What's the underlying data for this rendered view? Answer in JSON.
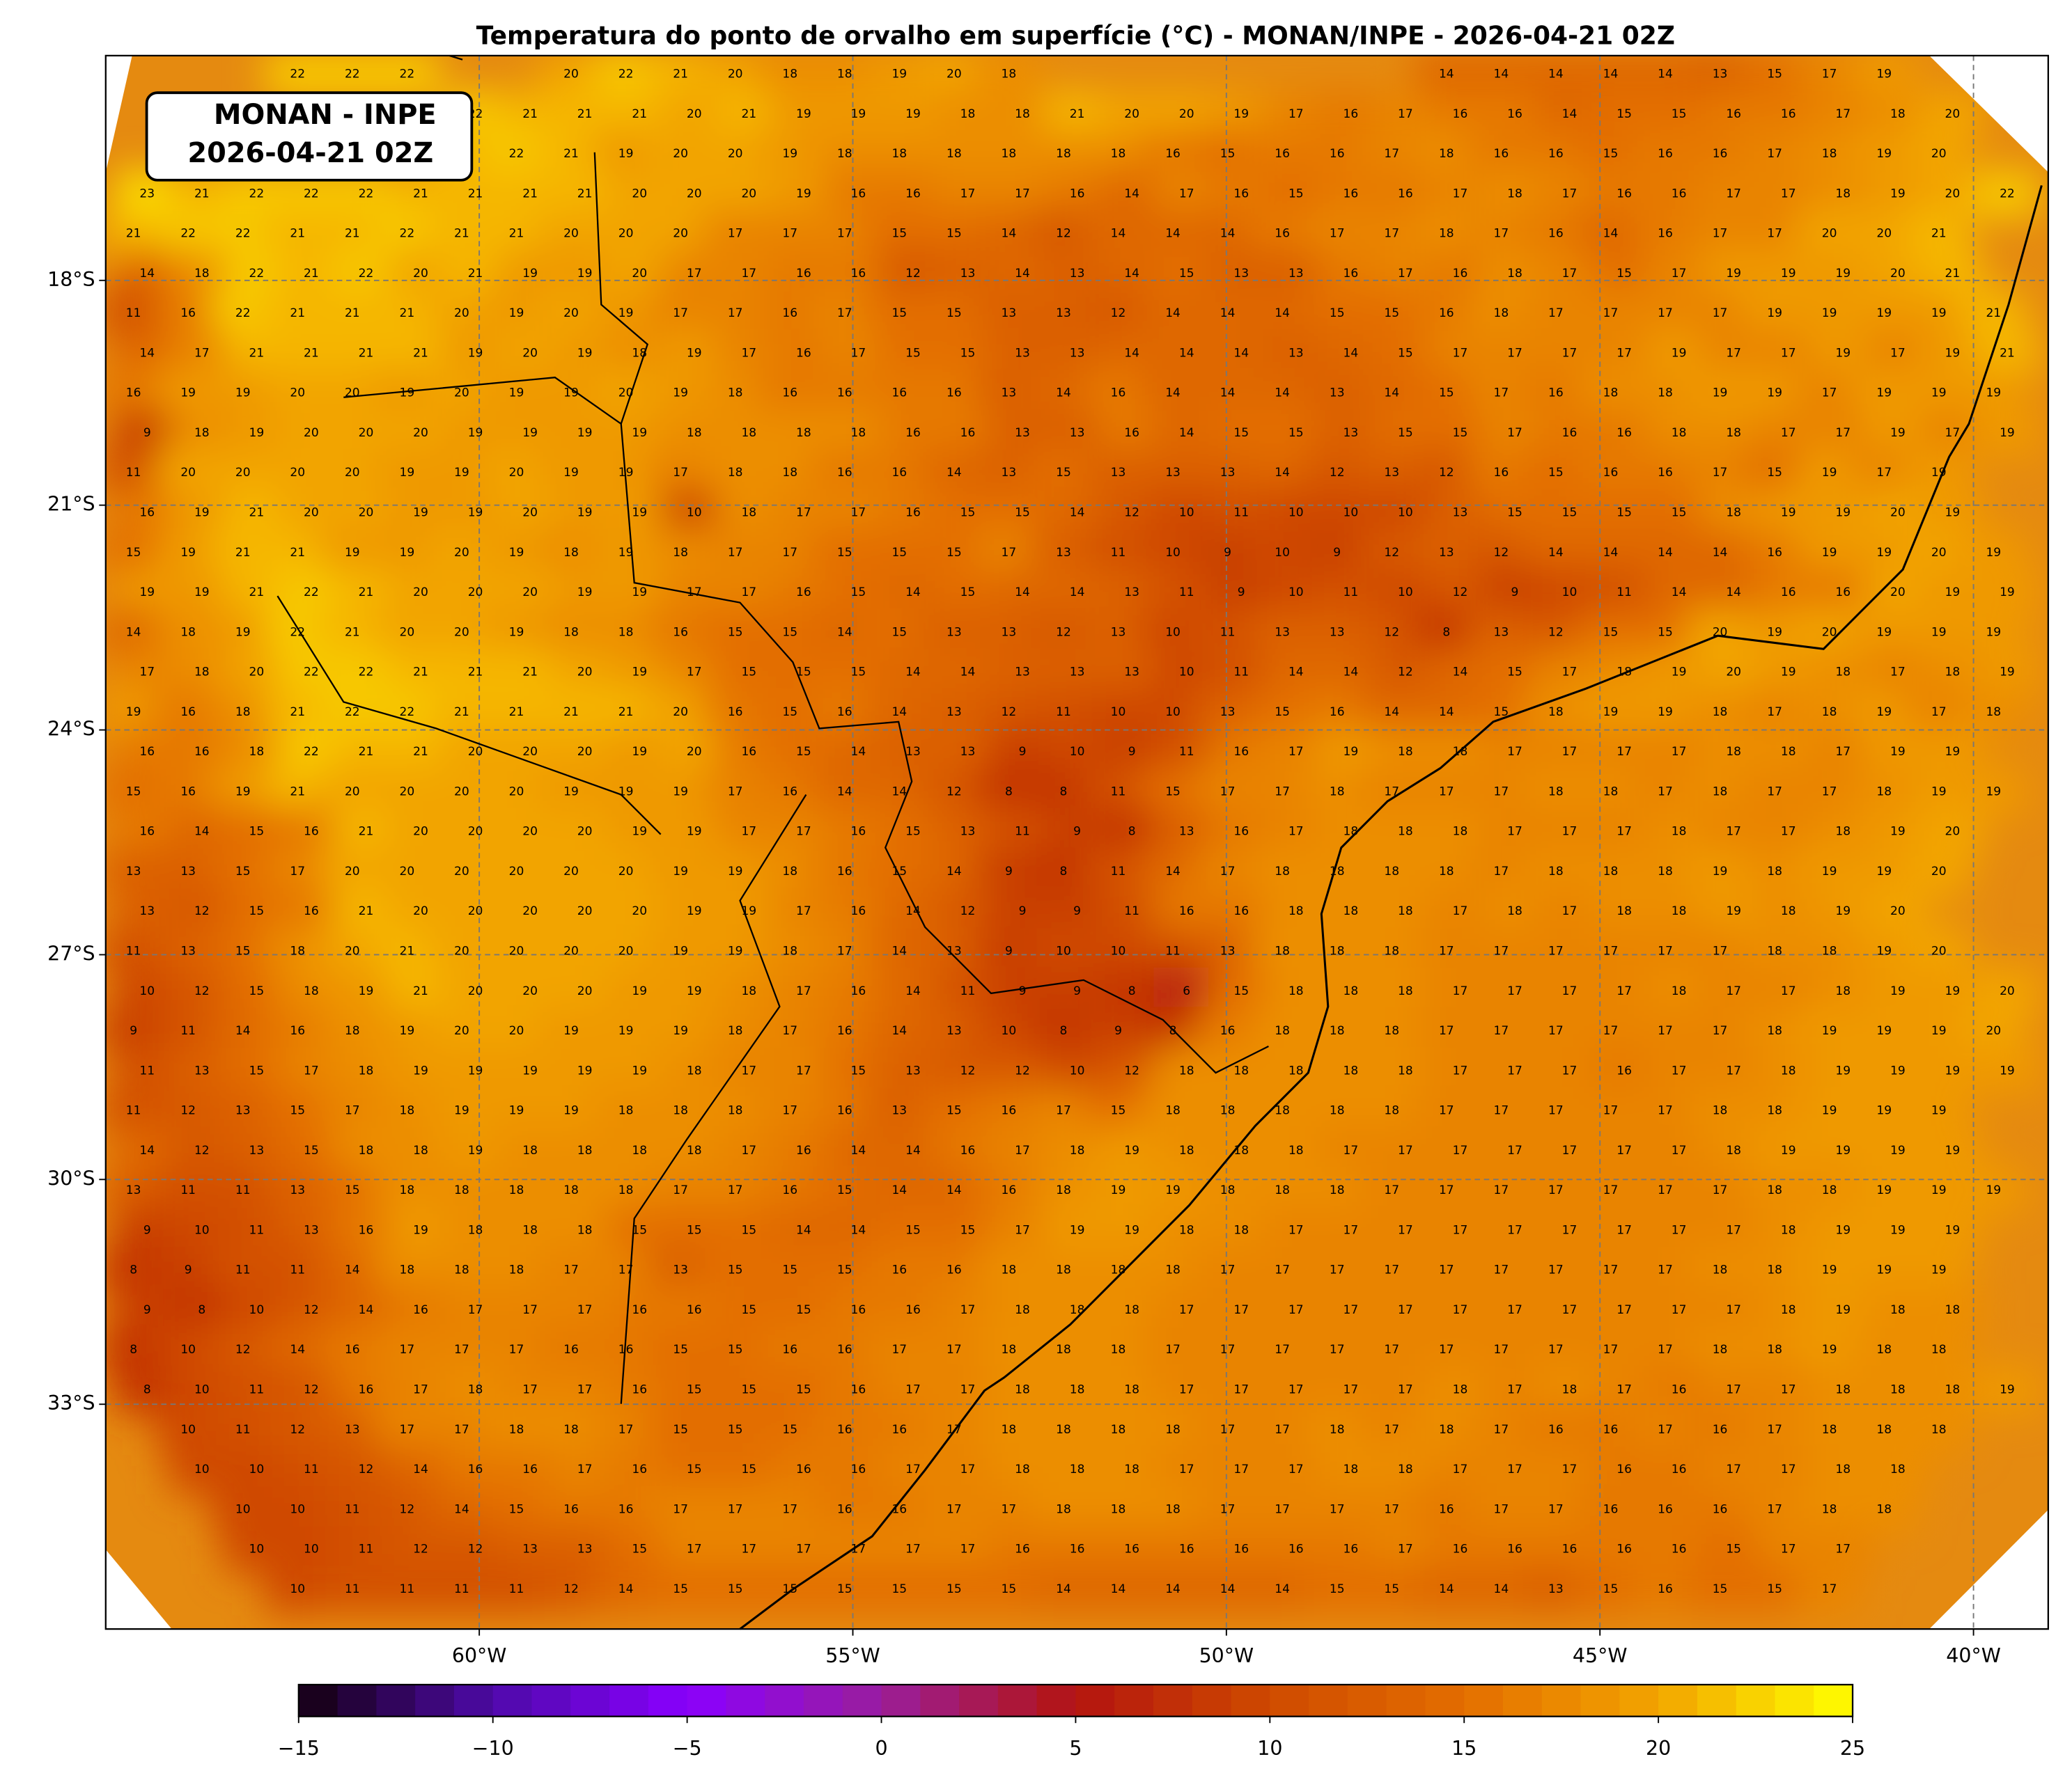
{
  "chart_data": {
    "type": "field-map",
    "title": "Temperatura do ponto de orvalho em superfície (°C) - MONAN/INPE - 2026-04-21 02Z",
    "annotation": [
      "MONAN - INPE",
      "2026-04-21 02Z"
    ],
    "xlim": [
      -65,
      -39
    ],
    "ylim": [
      -36,
      -15
    ],
    "xticks": [
      {
        "value": -60,
        "label": "60°W"
      },
      {
        "value": -55,
        "label": "55°W"
      },
      {
        "value": -50,
        "label": "50°W"
      },
      {
        "value": -45,
        "label": "45°W"
      },
      {
        "value": -40,
        "label": "40°W"
      }
    ],
    "yticks": [
      {
        "value": -18,
        "label": "18°S"
      },
      {
        "value": -21,
        "label": "21°S"
      },
      {
        "value": -24,
        "label": "24°S"
      },
      {
        "value": -27,
        "label": "27°S"
      },
      {
        "value": -30,
        "label": "30°S"
      },
      {
        "value": -33,
        "label": "33°S"
      }
    ],
    "grid": true,
    "colorbar": {
      "lim": [
        -15,
        25
      ],
      "ticks": [
        {
          "value": -15,
          "label": "−15"
        },
        {
          "value": -10,
          "label": "−10"
        },
        {
          "value": -5,
          "label": "−5"
        },
        0,
        5,
        10,
        15,
        20,
        25
      ],
      "colors": [
        "#14000f",
        "#4e0aa8",
        "#8a00ff",
        "#9a1e9c",
        "#b3140f",
        "#cf4a00",
        "#e36e00",
        "#f2a400",
        "#ffff00"
      ]
    },
    "values": [
      [
        null,
        null,
        null,
        22,
        22,
        22,
        null,
        null,
        20,
        22,
        21,
        20,
        18,
        18,
        19,
        20,
        18,
        null,
        null,
        null,
        null,
        null,
        null,
        null,
        14,
        14,
        14,
        14,
        14,
        13,
        15,
        17,
        19,
        null,
        null
      ],
      [
        null,
        null,
        null,
        null,
        null,
        null,
        22,
        21,
        21,
        21,
        20,
        21,
        19,
        19,
        19,
        18,
        18,
        21,
        20,
        20,
        19,
        17,
        16,
        17,
        16,
        16,
        14,
        15,
        15,
        16,
        16,
        17,
        18,
        20,
        null
      ],
      [
        null,
        null,
        null,
        null,
        null,
        null,
        21,
        22,
        21,
        19,
        20,
        20,
        19,
        18,
        18,
        18,
        18,
        18,
        18,
        16,
        15,
        16,
        16,
        17,
        18,
        16,
        16,
        15,
        16,
        16,
        17,
        18,
        19,
        20,
        null
      ],
      [
        23,
        21,
        22,
        22,
        22,
        21,
        21,
        21,
        21,
        20,
        20,
        20,
        19,
        16,
        16,
        17,
        17,
        16,
        14,
        17,
        16,
        15,
        16,
        16,
        17,
        18,
        17,
        16,
        16,
        17,
        17,
        18,
        19,
        20,
        22
      ],
      [
        21,
        22,
        22,
        21,
        21,
        22,
        21,
        21,
        20,
        20,
        20,
        17,
        17,
        17,
        15,
        15,
        14,
        12,
        14,
        14,
        14,
        16,
        17,
        17,
        18,
        17,
        16,
        14,
        16,
        17,
        17,
        20,
        20,
        21,
        null
      ],
      [
        14,
        18,
        22,
        21,
        22,
        20,
        21,
        19,
        19,
        20,
        17,
        17,
        16,
        16,
        12,
        13,
        14,
        13,
        14,
        15,
        13,
        13,
        16,
        17,
        16,
        18,
        17,
        15,
        17,
        19,
        19,
        19,
        20,
        21,
        null
      ],
      [
        11,
        16,
        22,
        21,
        21,
        21,
        20,
        19,
        20,
        19,
        17,
        17,
        16,
        17,
        15,
        15,
        13,
        13,
        12,
        14,
        14,
        14,
        15,
        15,
        16,
        18,
        17,
        17,
        17,
        17,
        19,
        19,
        19,
        19,
        21
      ],
      [
        14,
        17,
        21,
        21,
        21,
        21,
        19,
        20,
        19,
        18,
        19,
        17,
        16,
        17,
        15,
        15,
        13,
        13,
        14,
        14,
        14,
        13,
        14,
        15,
        17,
        17,
        17,
        17,
        19,
        17,
        17,
        19,
        17,
        19,
        21
      ],
      [
        16,
        19,
        19,
        20,
        20,
        19,
        20,
        19,
        19,
        20,
        19,
        18,
        16,
        16,
        16,
        16,
        13,
        14,
        16,
        14,
        14,
        14,
        13,
        14,
        15,
        17,
        16,
        18,
        18,
        19,
        19,
        17,
        19,
        19,
        19
      ],
      [
        9,
        18,
        19,
        20,
        20,
        20,
        19,
        19,
        19,
        19,
        18,
        18,
        18,
        18,
        16,
        16,
        13,
        13,
        16,
        14,
        15,
        15,
        13,
        15,
        15,
        17,
        16,
        16,
        18,
        18,
        17,
        17,
        19,
        17,
        19
      ],
      [
        11,
        20,
        20,
        20,
        20,
        19,
        19,
        20,
        19,
        19,
        17,
        18,
        18,
        16,
        16,
        14,
        13,
        15,
        13,
        13,
        13,
        14,
        12,
        13,
        12,
        16,
        15,
        16,
        16,
        17,
        15,
        19,
        17,
        19,
        null
      ],
      [
        16,
        19,
        21,
        20,
        20,
        19,
        19,
        20,
        19,
        19,
        10,
        18,
        17,
        17,
        16,
        15,
        15,
        14,
        12,
        10,
        11,
        10,
        10,
        10,
        13,
        15,
        15,
        15,
        15,
        18,
        19,
        19,
        20,
        19,
        null
      ],
      [
        15,
        19,
        21,
        21,
        19,
        19,
        20,
        19,
        18,
        19,
        18,
        17,
        17,
        15,
        15,
        15,
        17,
        13,
        11,
        10,
        9,
        10,
        9,
        12,
        13,
        12,
        14,
        14,
        14,
        14,
        16,
        19,
        19,
        20,
        19
      ],
      [
        19,
        19,
        21,
        22,
        21,
        20,
        20,
        20,
        19,
        19,
        17,
        17,
        16,
        15,
        14,
        15,
        14,
        14,
        13,
        11,
        9,
        10,
        11,
        10,
        12,
        9,
        10,
        11,
        14,
        14,
        16,
        16,
        20,
        19,
        19
      ],
      [
        14,
        18,
        19,
        22,
        21,
        20,
        20,
        19,
        18,
        18,
        16,
        15,
        15,
        14,
        15,
        13,
        13,
        12,
        13,
        10,
        11,
        13,
        13,
        12,
        8,
        13,
        12,
        15,
        15,
        20,
        19,
        20,
        19,
        19,
        19
      ],
      [
        17,
        18,
        20,
        22,
        22,
        21,
        21,
        21,
        20,
        19,
        17,
        15,
        15,
        15,
        14,
        14,
        13,
        13,
        13,
        10,
        11,
        14,
        14,
        12,
        14,
        15,
        17,
        18,
        19,
        20,
        19,
        18,
        17,
        18,
        19
      ],
      [
        19,
        16,
        18,
        21,
        22,
        22,
        21,
        21,
        21,
        21,
        20,
        16,
        15,
        16,
        14,
        13,
        12,
        11,
        10,
        10,
        13,
        15,
        16,
        14,
        14,
        15,
        18,
        19,
        19,
        18,
        17,
        18,
        19,
        17,
        18
      ],
      [
        16,
        16,
        18,
        22,
        21,
        21,
        20,
        20,
        20,
        19,
        20,
        16,
        15,
        14,
        13,
        13,
        9,
        10,
        9,
        11,
        16,
        17,
        19,
        18,
        18,
        17,
        17,
        17,
        17,
        18,
        18,
        17,
        19,
        19,
        null
      ],
      [
        15,
        16,
        19,
        21,
        20,
        20,
        20,
        20,
        19,
        19,
        19,
        17,
        16,
        14,
        14,
        12,
        8,
        8,
        11,
        15,
        17,
        17,
        18,
        17,
        17,
        17,
        18,
        18,
        17,
        18,
        17,
        17,
        18,
        19,
        19
      ],
      [
        16,
        14,
        15,
        16,
        21,
        20,
        20,
        20,
        20,
        19,
        19,
        17,
        17,
        16,
        15,
        13,
        11,
        9,
        8,
        13,
        16,
        17,
        18,
        18,
        18,
        17,
        17,
        17,
        18,
        17,
        17,
        18,
        19,
        20,
        null
      ],
      [
        13,
        13,
        15,
        17,
        20,
        20,
        20,
        20,
        20,
        20,
        19,
        19,
        18,
        16,
        15,
        14,
        9,
        8,
        11,
        14,
        17,
        18,
        18,
        18,
        18,
        17,
        18,
        18,
        18,
        19,
        18,
        19,
        19,
        20,
        null
      ],
      [
        13,
        12,
        15,
        16,
        21,
        20,
        20,
        20,
        20,
        20,
        19,
        19,
        17,
        16,
        14,
        12,
        9,
        9,
        11,
        16,
        16,
        18,
        18,
        18,
        17,
        18,
        17,
        18,
        18,
        19,
        18,
        19,
        20,
        null,
        null
      ],
      [
        11,
        13,
        15,
        18,
        20,
        21,
        20,
        20,
        20,
        20,
        19,
        19,
        18,
        17,
        14,
        13,
        9,
        10,
        10,
        11,
        13,
        18,
        18,
        18,
        17,
        17,
        17,
        17,
        17,
        17,
        18,
        18,
        19,
        20,
        null
      ],
      [
        10,
        12,
        15,
        18,
        19,
        21,
        20,
        20,
        20,
        19,
        19,
        18,
        17,
        16,
        14,
        11,
        9,
        9,
        8,
        6,
        15,
        18,
        18,
        18,
        17,
        17,
        17,
        17,
        18,
        17,
        17,
        18,
        19,
        19,
        20
      ],
      [
        9,
        11,
        14,
        16,
        18,
        19,
        20,
        20,
        19,
        19,
        19,
        18,
        17,
        16,
        14,
        13,
        10,
        8,
        9,
        8,
        16,
        18,
        18,
        18,
        17,
        17,
        17,
        17,
        17,
        17,
        18,
        19,
        19,
        19,
        20
      ],
      [
        11,
        13,
        15,
        17,
        18,
        19,
        19,
        19,
        19,
        19,
        18,
        17,
        17,
        15,
        13,
        12,
        12,
        10,
        12,
        18,
        18,
        18,
        18,
        18,
        17,
        17,
        17,
        16,
        17,
        17,
        18,
        19,
        19,
        19,
        19
      ],
      [
        11,
        12,
        13,
        15,
        17,
        18,
        19,
        19,
        19,
        18,
        18,
        18,
        17,
        16,
        13,
        15,
        16,
        17,
        15,
        18,
        18,
        18,
        18,
        18,
        17,
        17,
        17,
        17,
        17,
        18,
        18,
        19,
        19,
        19,
        null
      ],
      [
        14,
        12,
        13,
        15,
        18,
        18,
        19,
        18,
        18,
        18,
        18,
        17,
        16,
        14,
        14,
        16,
        17,
        18,
        19,
        18,
        18,
        18,
        17,
        17,
        17,
        17,
        17,
        17,
        17,
        18,
        19,
        19,
        19,
        19,
        null
      ],
      [
        13,
        11,
        11,
        13,
        15,
        18,
        18,
        18,
        18,
        18,
        17,
        17,
        16,
        15,
        14,
        14,
        16,
        18,
        19,
        19,
        18,
        18,
        18,
        17,
        17,
        17,
        17,
        17,
        17,
        17,
        18,
        18,
        19,
        19,
        19
      ],
      [
        9,
        10,
        11,
        13,
        16,
        19,
        18,
        18,
        18,
        15,
        15,
        15,
        14,
        14,
        15,
        15,
        17,
        19,
        19,
        18,
        18,
        17,
        17,
        17,
        17,
        17,
        17,
        17,
        17,
        17,
        18,
        19,
        19,
        19,
        null
      ],
      [
        8,
        9,
        11,
        11,
        14,
        18,
        18,
        18,
        17,
        17,
        13,
        15,
        15,
        15,
        16,
        16,
        18,
        18,
        18,
        18,
        17,
        17,
        17,
        17,
        17,
        17,
        17,
        17,
        17,
        18,
        18,
        19,
        19,
        19,
        null
      ],
      [
        9,
        8,
        10,
        12,
        14,
        16,
        17,
        17,
        17,
        16,
        16,
        15,
        15,
        16,
        16,
        17,
        18,
        18,
        18,
        17,
        17,
        17,
        17,
        17,
        17,
        17,
        17,
        17,
        17,
        17,
        18,
        19,
        18,
        18,
        null
      ],
      [
        8,
        10,
        12,
        14,
        16,
        17,
        17,
        17,
        16,
        16,
        15,
        15,
        16,
        16,
        17,
        17,
        18,
        18,
        18,
        17,
        17,
        17,
        17,
        17,
        17,
        17,
        17,
        17,
        17,
        18,
        18,
        19,
        18,
        18,
        null
      ],
      [
        8,
        10,
        11,
        12,
        16,
        17,
        18,
        17,
        17,
        16,
        15,
        15,
        15,
        16,
        17,
        17,
        18,
        18,
        18,
        17,
        17,
        17,
        17,
        17,
        18,
        17,
        18,
        17,
        16,
        17,
        17,
        18,
        18,
        18,
        19
      ],
      [
        null,
        10,
        11,
        12,
        13,
        17,
        17,
        18,
        18,
        17,
        15,
        15,
        15,
        16,
        16,
        17,
        18,
        18,
        18,
        18,
        17,
        17,
        18,
        17,
        18,
        17,
        16,
        16,
        17,
        16,
        17,
        18,
        18,
        18,
        null
      ],
      [
        null,
        10,
        10,
        11,
        12,
        14,
        16,
        16,
        17,
        16,
        15,
        15,
        16,
        16,
        17,
        17,
        18,
        18,
        18,
        17,
        17,
        17,
        18,
        18,
        17,
        17,
        17,
        16,
        16,
        17,
        17,
        18,
        18,
        null,
        null
      ],
      [
        null,
        null,
        10,
        10,
        11,
        12,
        14,
        15,
        16,
        16,
        17,
        17,
        17,
        16,
        16,
        17,
        17,
        18,
        18,
        18,
        17,
        17,
        17,
        17,
        16,
        17,
        17,
        16,
        16,
        16,
        17,
        18,
        18,
        null,
        null
      ],
      [
        null,
        null,
        10,
        10,
        11,
        12,
        12,
        13,
        13,
        15,
        17,
        17,
        17,
        17,
        17,
        17,
        16,
        16,
        16,
        16,
        16,
        16,
        16,
        17,
        16,
        16,
        16,
        16,
        16,
        15,
        17,
        17,
        null,
        null,
        null
      ],
      [
        null,
        null,
        null,
        10,
        11,
        11,
        11,
        11,
        12,
        14,
        15,
        15,
        15,
        15,
        15,
        15,
        15,
        14,
        14,
        14,
        14,
        14,
        15,
        15,
        14,
        14,
        13,
        15,
        16,
        15,
        15,
        17,
        null,
        null,
        null
      ]
    ]
  }
}
